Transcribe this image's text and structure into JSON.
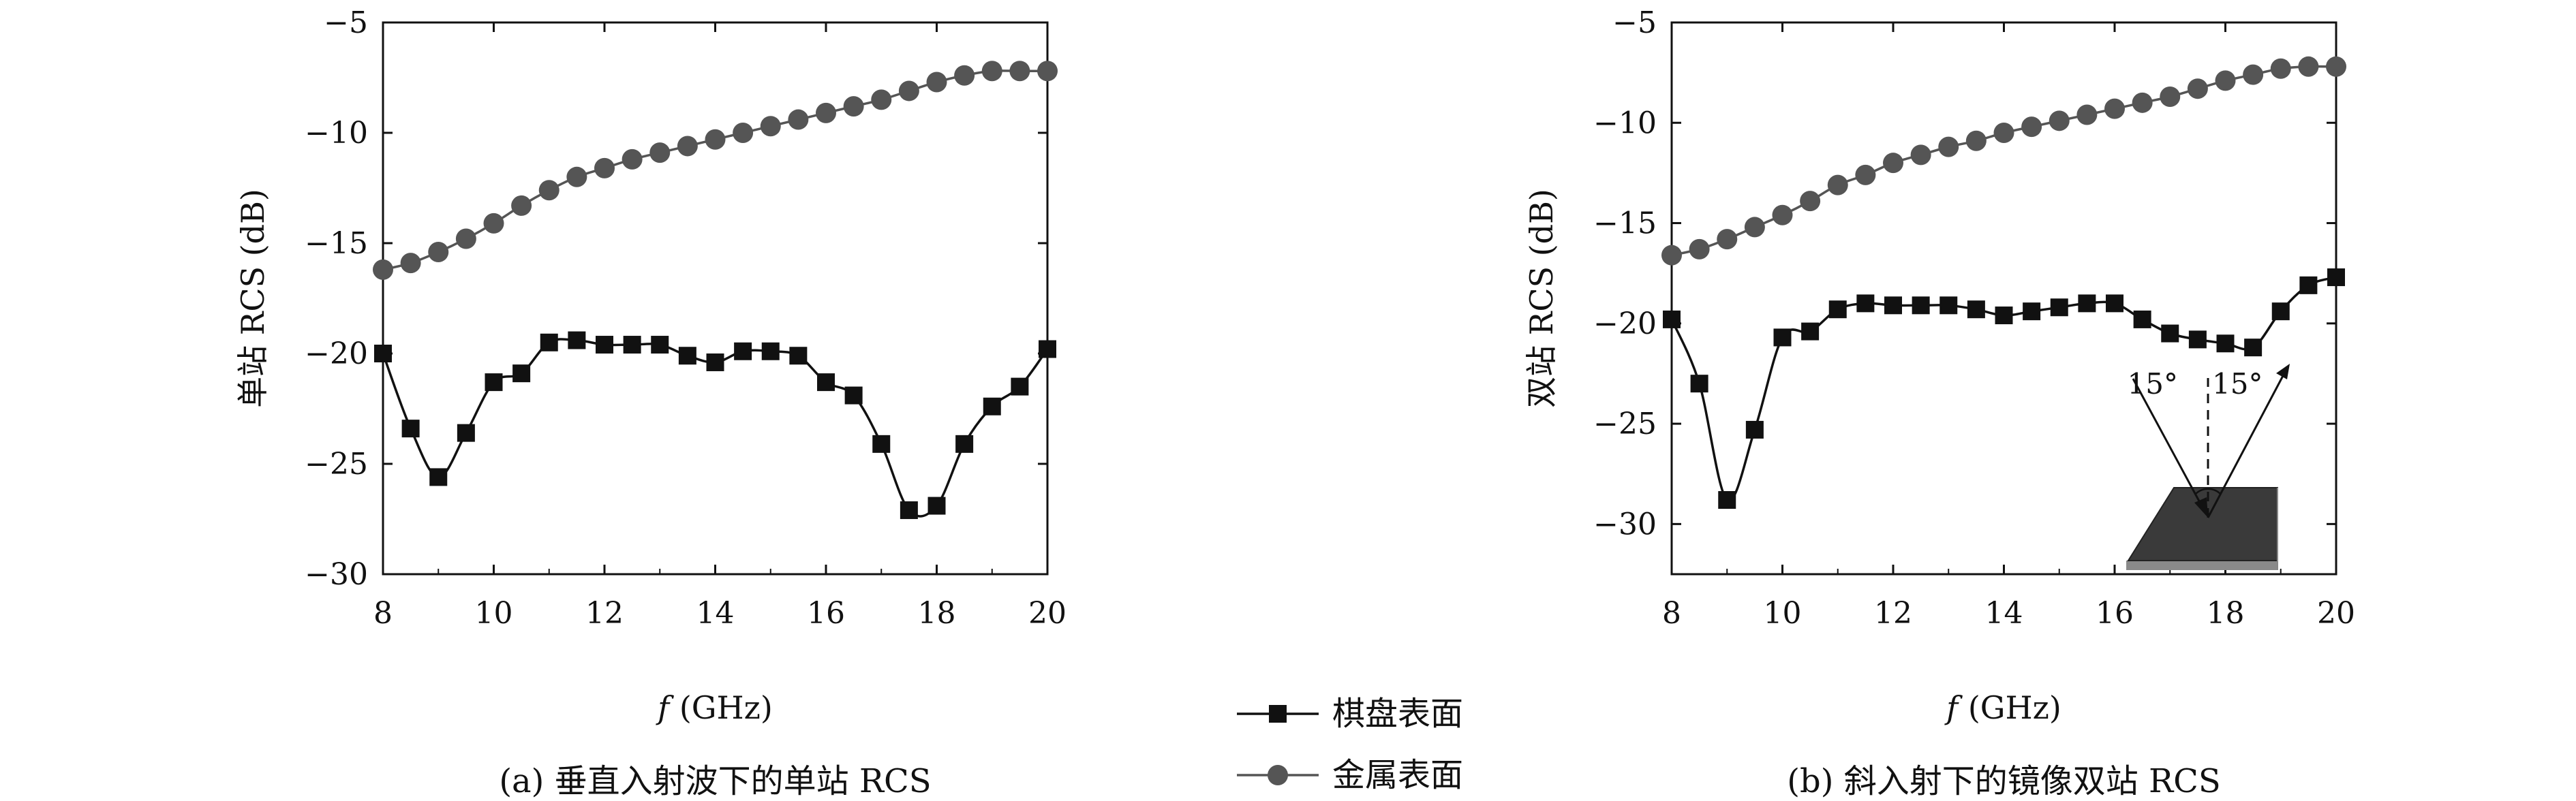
{
  "chart_data": [
    {
      "type": "line",
      "caption": "(a) 垂直入射波下的单站 RCS",
      "xlabel_italic": "f",
      "xlabel_rest": " (GHz)",
      "ylabel": "单站 RCS (dB)",
      "xlim": [
        8,
        20
      ],
      "ylim": [
        -30,
        -5
      ],
      "xticks": [
        8,
        10,
        12,
        14,
        16,
        18,
        20
      ],
      "yticks": [
        -5,
        -10,
        -15,
        -20,
        -25,
        -30
      ],
      "ytick_labels": [
        "−5",
        "−10",
        "−15",
        "−20",
        "−25",
        "−30"
      ],
      "series": [
        {
          "name": "棋盘表面",
          "marker": "square",
          "color": "#111111",
          "x": [
            8,
            8.5,
            9,
            9.5,
            10,
            10.5,
            11,
            11.5,
            12,
            12.5,
            13,
            13.5,
            14,
            14.5,
            15,
            15.5,
            16,
            16.5,
            17,
            17.5,
            18,
            18.5,
            19,
            19.5,
            20
          ],
          "y": [
            -20.0,
            -23.4,
            -25.6,
            -23.6,
            -21.3,
            -20.9,
            -19.5,
            -19.4,
            -19.6,
            -19.6,
            -19.6,
            -20.1,
            -20.4,
            -19.9,
            -19.9,
            -20.1,
            -21.3,
            -21.9,
            -24.1,
            -27.1,
            -26.9,
            -24.1,
            -22.4,
            -21.5,
            -19.8
          ]
        },
        {
          "name": "金属表面",
          "marker": "circle",
          "color": "#555555",
          "x": [
            8,
            8.5,
            9,
            9.5,
            10,
            10.5,
            11,
            11.5,
            12,
            12.5,
            13,
            13.5,
            14,
            14.5,
            15,
            15.5,
            16,
            16.5,
            17,
            17.5,
            18,
            18.5,
            19,
            19.5,
            20
          ],
          "y": [
            -16.2,
            -15.9,
            -15.4,
            -14.8,
            -14.1,
            -13.3,
            -12.6,
            -12.0,
            -11.6,
            -11.2,
            -10.9,
            -10.6,
            -10.3,
            -10.0,
            -9.7,
            -9.4,
            -9.1,
            -8.8,
            -8.5,
            -8.1,
            -7.7,
            -7.4,
            -7.2,
            -7.2,
            -7.2
          ]
        }
      ]
    },
    {
      "type": "line",
      "caption": "(b) 斜入射下的镜像双站 RCS",
      "xlabel_italic": "f",
      "xlabel_rest": " (GHz)",
      "ylabel": "双站 RCS (dB)",
      "xlim": [
        8,
        20
      ],
      "ylim": [
        -32.5,
        -5
      ],
      "xticks": [
        8,
        10,
        12,
        14,
        16,
        18,
        20
      ],
      "yticks": [
        -5,
        -10,
        -15,
        -20,
        -25,
        -30
      ],
      "ytick_labels": [
        "−5",
        "−10",
        "−15",
        "−20",
        "−25",
        "−30"
      ],
      "inset": {
        "angle_left": "15°",
        "angle_right": "15°"
      },
      "series": [
        {
          "name": "棋盘表面",
          "marker": "square",
          "color": "#111111",
          "x": [
            8,
            8.5,
            9,
            9.5,
            10,
            10.5,
            11,
            11.5,
            12,
            12.5,
            13,
            13.5,
            14,
            14.5,
            15,
            15.5,
            16,
            16.5,
            17,
            17.5,
            18,
            18.5,
            19,
            19.5,
            20
          ],
          "y": [
            -19.8,
            -23.0,
            -28.8,
            -25.3,
            -20.7,
            -20.4,
            -19.3,
            -19.0,
            -19.1,
            -19.1,
            -19.1,
            -19.3,
            -19.6,
            -19.4,
            -19.2,
            -19.0,
            -19.0,
            -19.8,
            -20.5,
            -20.8,
            -21.0,
            -21.2,
            -19.4,
            -18.1,
            -17.7
          ]
        },
        {
          "name": "金属表面",
          "marker": "circle",
          "color": "#555555",
          "x": [
            8,
            8.5,
            9,
            9.5,
            10,
            10.5,
            11,
            11.5,
            12,
            12.5,
            13,
            13.5,
            14,
            14.5,
            15,
            15.5,
            16,
            16.5,
            17,
            17.5,
            18,
            18.5,
            19,
            19.5,
            20
          ],
          "y": [
            -16.6,
            -16.3,
            -15.8,
            -15.2,
            -14.6,
            -13.9,
            -13.1,
            -12.6,
            -12.0,
            -11.6,
            -11.2,
            -10.9,
            -10.5,
            -10.2,
            -9.9,
            -9.6,
            -9.3,
            -9.0,
            -8.7,
            -8.3,
            -7.9,
            -7.6,
            -7.3,
            -7.2,
            -7.2
          ]
        }
      ]
    }
  ],
  "legend": {
    "items": [
      {
        "label": "棋盘表面",
        "marker": "square",
        "color": "#111111"
      },
      {
        "label": "金属表面",
        "marker": "circle",
        "color": "#555555"
      }
    ]
  }
}
